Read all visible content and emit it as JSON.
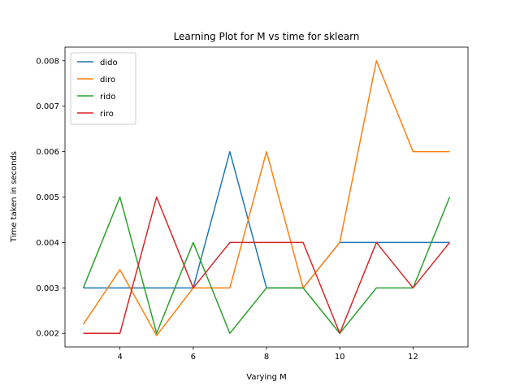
{
  "chart_data": {
    "type": "line",
    "title": "Learning Plot for M vs time for sklearn",
    "xlabel": "Varying M",
    "ylabel": "Time taken in seconds",
    "xlim": [
      2.5,
      13.5
    ],
    "ylim": [
      0.0017,
      0.0083
    ],
    "xticks": [
      4,
      6,
      8,
      10,
      12
    ],
    "yticks": [
      0.002,
      0.003,
      0.004,
      0.005,
      0.006,
      0.007,
      0.008
    ],
    "ytick_labels": [
      "0.002",
      "0.003",
      "0.004",
      "0.005",
      "0.006",
      "0.007",
      "0.008"
    ],
    "legend_position": "top-left",
    "grid": false,
    "x": [
      3,
      4,
      5,
      6,
      7,
      8,
      9,
      10,
      11,
      12,
      13
    ],
    "series": [
      {
        "name": "dido",
        "color": "#1f77b4",
        "values": [
          0.003,
          0.003,
          0.003,
          0.003,
          0.006,
          0.003,
          0.003,
          0.004,
          0.004,
          0.004,
          0.004
        ]
      },
      {
        "name": "diro",
        "color": "#ff7f0e",
        "values": [
          0.0022,
          0.0034,
          0.00195,
          0.003,
          0.003,
          0.006,
          0.003,
          0.004,
          0.008,
          0.006,
          0.006
        ]
      },
      {
        "name": "rido",
        "color": "#2ca02c",
        "values": [
          0.003,
          0.005,
          0.002,
          0.004,
          0.002,
          0.003,
          0.003,
          0.002,
          0.003,
          0.003,
          0.005
        ]
      },
      {
        "name": "riro",
        "color": "#d62728",
        "values": [
          0.002,
          0.002,
          0.005,
          0.003,
          0.004,
          0.004,
          0.004,
          0.002,
          0.004,
          0.003,
          0.004
        ]
      }
    ]
  }
}
